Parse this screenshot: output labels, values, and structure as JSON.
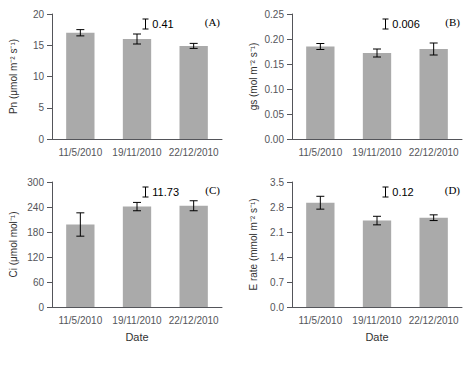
{
  "chart_data": [
    {
      "type": "bar",
      "categories": [
        "11/5/2010",
        "19/11/2010",
        "22/12/2010"
      ],
      "values": [
        17.0,
        16.0,
        14.9
      ],
      "errors": [
        0.5,
        0.8,
        0.4
      ],
      "ylabel": "Pn (μmol m⁻² s⁻¹)",
      "ylim": [
        0,
        20
      ],
      "yticks": [
        0,
        5,
        10,
        15,
        20
      ],
      "annotations": [
        "0.41"
      ],
      "panel_label": "(A)",
      "color": "#aaaaaa",
      "grid": false
    },
    {
      "type": "bar",
      "categories": [
        "11/5/2010",
        "19/11/2010",
        "22/12/2010"
      ],
      "values": [
        0.185,
        0.172,
        0.18
      ],
      "errors": [
        0.006,
        0.008,
        0.012
      ],
      "ylabel": "gs (mol m⁻² s⁻¹)",
      "ylim": [
        0.0,
        0.25
      ],
      "yticks": [
        {
          "value": 0,
          "label": "0.00"
        },
        0.05,
        {
          "value": 0.1,
          "label": "0.10"
        },
        0.15,
        {
          "value": 0.2,
          "label": "0.20"
        },
        0.25
      ],
      "annotations": [
        "0.006"
      ],
      "panel_label": "(B)",
      "color": "#aaaaaa",
      "grid": false
    },
    {
      "type": "bar",
      "categories": [
        "11/5/2010",
        "19/11/2010",
        "22/12/2010"
      ],
      "values": [
        198,
        241,
        243
      ],
      "errors": [
        28,
        10,
        12
      ],
      "xlabel": "Date",
      "ylabel": "Ci (μmol mol⁻¹)",
      "ylim": [
        0,
        300
      ],
      "yticks": [
        0,
        60,
        120,
        180,
        240,
        300
      ],
      "annotations": [
        "11.73"
      ],
      "panel_label": "(C)",
      "color": "#aaaaaa",
      "grid": false
    },
    {
      "type": "bar",
      "categories": [
        "11/5/2010",
        "19/11/2010",
        "22/12/2010"
      ],
      "values": [
        2.92,
        2.42,
        2.5
      ],
      "errors": [
        0.18,
        0.12,
        0.08
      ],
      "xlabel": "Date",
      "ylabel": "E rate (mmol m⁻² s⁻¹)",
      "ylim": [
        0.0,
        3.5
      ],
      "yticks": [
        {
          "value": 0,
          "label": "0.0"
        },
        0.7,
        1.4,
        2.1,
        2.8,
        3.5
      ],
      "annotations": [
        "0.12"
      ],
      "panel_label": "(D)",
      "color": "#aaaaaa",
      "grid": false
    }
  ]
}
